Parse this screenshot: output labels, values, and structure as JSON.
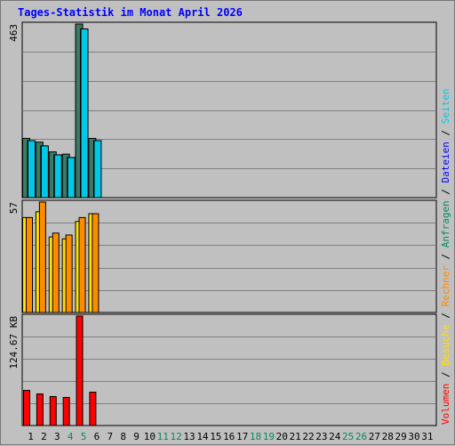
{
  "title": "Tages-Statistik im Monat April 2026",
  "colors": {
    "background": "#c0c0c0",
    "grid": "#808080",
    "anfragen": "#008b5a",
    "dateien": "#0000ff",
    "seiten": "#00c8e6",
    "besuche": "#ffe000",
    "rechner": "#ff8c00",
    "volumen": "#ff0000",
    "weekend_label": "#008b5a",
    "weekday_label": "#000000"
  },
  "chart_data": [
    {
      "type": "bar",
      "panel": "top",
      "ylabel": "463",
      "ylim": [
        0,
        463
      ],
      "categories": [
        "1",
        "2",
        "3",
        "4",
        "5",
        "6",
        "7",
        "8",
        "9",
        "10",
        "11",
        "12",
        "13",
        "14",
        "15",
        "16",
        "17",
        "18",
        "19",
        "20",
        "21",
        "22",
        "23",
        "24",
        "25",
        "26",
        "27",
        "28",
        "29",
        "30",
        "31"
      ],
      "series": [
        {
          "name": "Anfragen",
          "values": [
            158,
            148,
            122,
            116,
            463,
            158,
            null,
            null,
            null,
            null,
            null,
            null,
            null,
            null,
            null,
            null,
            null,
            null,
            null,
            null,
            null,
            null,
            null,
            null,
            null,
            null,
            null,
            null,
            null,
            null,
            null
          ]
        },
        {
          "name": "Dateien",
          "values": [
            152,
            138,
            114,
            107,
            450,
            152,
            null,
            null,
            null,
            null,
            null,
            null,
            null,
            null,
            null,
            null,
            null,
            null,
            null,
            null,
            null,
            null,
            null,
            null,
            null,
            null,
            null,
            null,
            null,
            null,
            null
          ]
        },
        {
          "name": "Seiten",
          "values": [
            152,
            138,
            114,
            107,
            450,
            152,
            null,
            null,
            null,
            null,
            null,
            null,
            null,
            null,
            null,
            null,
            null,
            null,
            null,
            null,
            null,
            null,
            null,
            null,
            null,
            null,
            null,
            null,
            null,
            null,
            null
          ]
        }
      ],
      "grid": true
    },
    {
      "type": "bar",
      "panel": "middle",
      "ylabel": "57",
      "ylim": [
        0,
        57
      ],
      "series": [
        {
          "name": "Besuche",
          "values": [
            49,
            52,
            39,
            38,
            47,
            51,
            null,
            null,
            null,
            null,
            null,
            null,
            null,
            null,
            null,
            null,
            null,
            null,
            null,
            null,
            null,
            null,
            null,
            null,
            null,
            null,
            null,
            null,
            null,
            null,
            null
          ]
        },
        {
          "name": "Rechner",
          "values": [
            49,
            57,
            41,
            40,
            49,
            51,
            null,
            null,
            null,
            null,
            null,
            null,
            null,
            null,
            null,
            null,
            null,
            null,
            null,
            null,
            null,
            null,
            null,
            null,
            null,
            null,
            null,
            null,
            null,
            null,
            null
          ]
        }
      ],
      "grid": true
    },
    {
      "type": "bar",
      "panel": "bottom",
      "ylabel": "124.67 KB",
      "ylim": [
        0,
        124.67
      ],
      "series": [
        {
          "name": "Volumen",
          "values": [
            40,
            36,
            33,
            32,
            124.67,
            38,
            null,
            null,
            null,
            null,
            null,
            null,
            null,
            null,
            null,
            null,
            null,
            null,
            null,
            null,
            null,
            null,
            null,
            null,
            null,
            null,
            null,
            null,
            null,
            null,
            null
          ]
        }
      ],
      "grid": true
    }
  ],
  "weekend_days": [
    "4",
    "5",
    "11",
    "12",
    "18",
    "19",
    "25",
    "26"
  ],
  "legend": {
    "top": [
      "Anfragen",
      "Dateien",
      "Seiten"
    ],
    "middle": [
      "Besuche",
      "Rechner"
    ],
    "bottom": [
      "Volumen"
    ],
    "separator": " / ",
    "placement": "right-vertical"
  }
}
